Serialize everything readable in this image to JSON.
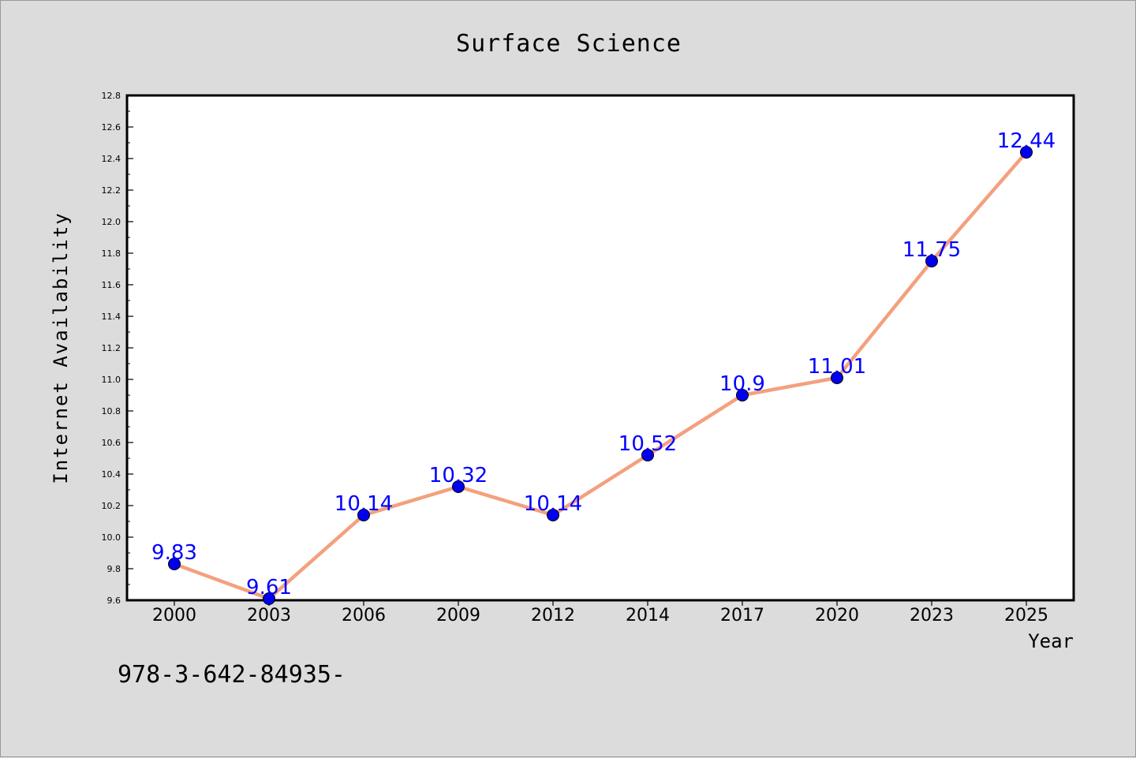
{
  "chart_data": {
    "type": "line",
    "title": "Surface Science",
    "xlabel": "Year",
    "ylabel": "Internet Availability",
    "categories": [
      "2000",
      "2003",
      "2006",
      "2009",
      "2012",
      "2014",
      "2017",
      "2020",
      "2023",
      "2025"
    ],
    "series": [
      {
        "values": [
          9.83,
          9.61,
          10.14,
          10.32,
          10.14,
          10.52,
          10.9,
          11.01,
          11.75,
          12.44
        ],
        "data_labels": [
          "9.83",
          "9.61",
          "10.14",
          "10.32",
          "10.14",
          "10.52",
          "10.9",
          "11.01",
          "11.75",
          "12.44"
        ],
        "line_color": "#f4a07e",
        "marker_color": "#0000ee",
        "label_color": "#0000ff"
      }
    ],
    "ylim": [
      9.6,
      12.8
    ],
    "yticks": [
      "9.6",
      "9.8",
      "10.0",
      "10.2",
      "10.4",
      "10.6",
      "10.8",
      "11.0",
      "11.2",
      "11.4",
      "11.6",
      "11.8",
      "12.0",
      "12.2",
      "12.4",
      "12.6",
      "12.8"
    ],
    "grid": false,
    "legend": "none"
  },
  "footnote": "978-3-642-84935-",
  "colors": {
    "background": "#dcdcdc",
    "plot_area": "#ffffff"
  }
}
